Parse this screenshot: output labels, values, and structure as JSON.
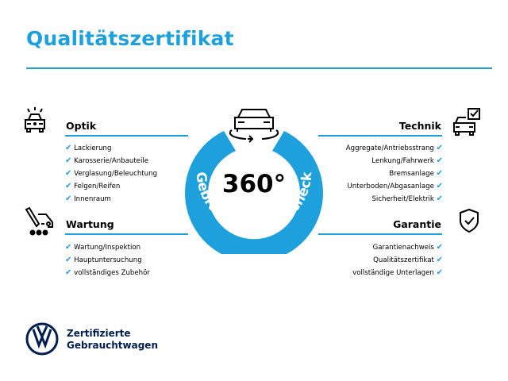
{
  "title": "Qualitätszertifikat",
  "badge": {
    "value": "360°",
    "arc_text": "Gebrauchtwagen-Check",
    "color": "#1da0dc"
  },
  "left": [
    {
      "title": "Optik",
      "icon": "car-lights-icon",
      "items": [
        "Lackierung",
        "Karosserie/Anbauteile",
        "Verglasung/Beleuchtung",
        "Felgen/Reifen",
        "Innenraum"
      ]
    },
    {
      "title": "Wartung",
      "icon": "service-tools-icon",
      "items": [
        "Wartung/Inspektion",
        "Hauptuntersuchung",
        "vollständiges Zubehör"
      ]
    }
  ],
  "right": [
    {
      "title": "Technik",
      "icon": "car-checkbox-icon",
      "items": [
        "Aggregate/Antriebsstrang",
        "Lenkung/Fahrwerk",
        "Bremsanlage",
        "Unterboden/Abgasanlage",
        "Sicherheit/Elektrik"
      ]
    },
    {
      "title": "Garantie",
      "icon": "shield-check-icon",
      "items": [
        "Garantienachweis",
        "Qualitätszertifikat",
        "vollständige Unterlagen"
      ]
    }
  ],
  "check": "✔",
  "logo": {
    "line1": "Zertifizierte",
    "line2": "Gebrauchtwagen",
    "color": "#001e50"
  }
}
